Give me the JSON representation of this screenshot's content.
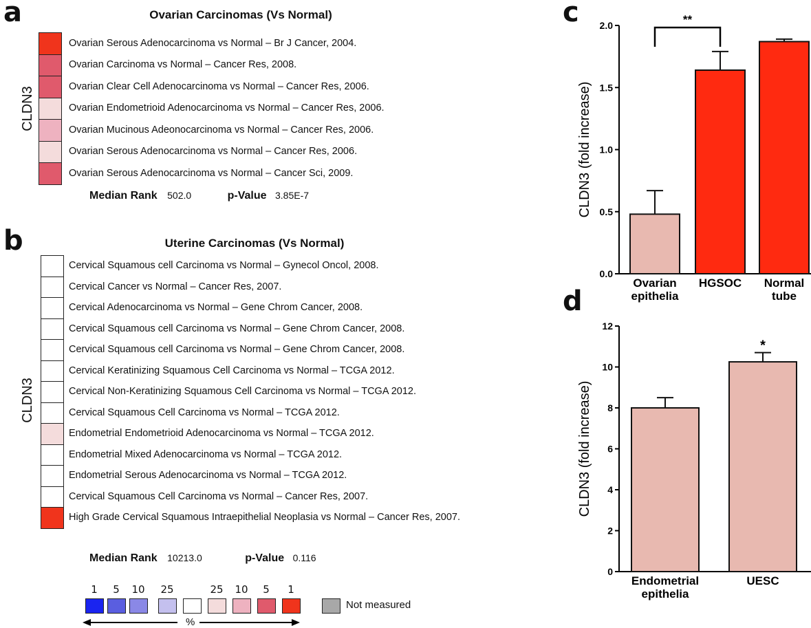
{
  "panels": {
    "a": {
      "letter": "a",
      "title": "Ovarian Carcinomas (Vs Normal)",
      "gene": "CLDN3",
      "rows": [
        {
          "label": "Ovarian Serous Adenocarcinoma vs Normal – Br J  Cancer, 2004.",
          "color": "#f0341c"
        },
        {
          "label": "Ovarian Carcinoma vs Normal – Cancer Res, 2008.",
          "color": "#e05a6c"
        },
        {
          "label": "Ovarian Clear Cell Adenocarcinoma vs Normal – Cancer Res, 2006.",
          "color": "#e05a6c"
        },
        {
          "label": "Ovarian Endometrioid Adenocarcinoma vs Normal – Cancer Res, 2006.",
          "color": "#f4dcdc"
        },
        {
          "label": "Ovarian Mucinous Adeonocarcinoma vs Normal – Cancer Res, 2006.",
          "color": "#eeb2c0"
        },
        {
          "label": "Ovarian Serous Adenocarcinoma vs Normal – Cancer Res, 2006.",
          "color": "#f4dcdc"
        },
        {
          "label": "Ovarian Serous Adenocarcinoma vs Normal – Cancer Sci, 2009.",
          "color": "#e05a6c"
        }
      ],
      "median_rank_label": "Median Rank",
      "median_rank": "502.0",
      "pvalue_label": "p-Value",
      "pvalue": "3.85E-7"
    },
    "b": {
      "letter": "b",
      "title": "Uterine Carcinomas (Vs Normal)",
      "gene": "CLDN3",
      "rows": [
        {
          "label": "Cervical Squamous cell Carcinoma vs Normal – Gynecol Oncol, 2008.",
          "color": "#ffffff"
        },
        {
          "label": "Cervical Cancer vs Normal – Cancer Res, 2007.",
          "color": "#ffffff"
        },
        {
          "label": "Cervical Adenocarcinoma vs Normal – Gene Chrom Cancer, 2008.",
          "color": "#ffffff"
        },
        {
          "label": "Cervical Squamous cell Carcinoma vs Normal – Gene Chrom Cancer, 2008.",
          "color": "#ffffff"
        },
        {
          "label": "Cervical Squamous cell Carcinoma vs Normal – Gene Chrom Cancer, 2008.",
          "color": "#ffffff"
        },
        {
          "label": "Cervical Keratinizing Squamous Cell Carcinoma vs Normal – TCGA 2012.",
          "color": "#ffffff"
        },
        {
          "label": "Cervical Non-Keratinizing Squamous Cell Carcinoma vs Normal – TCGA 2012.",
          "color": "#ffffff"
        },
        {
          "label": "Cervical Squamous Cell Carcinoma vs Normal – TCGA 2012.",
          "color": "#ffffff"
        },
        {
          "label": "Endometrial Endometrioid Adenocarcinoma vs Normal – TCGA 2012.",
          "color": "#f4dcdc"
        },
        {
          "label": "Endometrial Mixed Adenocarcinoma vs Normal – TCGA 2012.",
          "color": "#ffffff"
        },
        {
          "label": "Endometrial Serous Adenocarcinoma vs Normal – TCGA 2012.",
          "color": "#ffffff"
        },
        {
          "label": "Cervical Squamous Cell Carcinoma vs Normal – Cancer Res, 2007.",
          "color": "#ffffff"
        },
        {
          "label": "High Grade Cervical Squamous Intraepithelial Neoplasia vs Normal – Cancer Res, 2007.",
          "color": "#f0341c"
        }
      ],
      "median_rank_label": "Median Rank",
      "median_rank": "10213.0",
      "pvalue_label": "p-Value",
      "pvalue": "0.116"
    },
    "legend": {
      "numbers": [
        "1",
        "5",
        "10",
        "25",
        "25",
        "10",
        "5",
        "1"
      ],
      "colors": [
        "#1a24f0",
        "#5a5ee0",
        "#8a88e6",
        "#c4c0ee",
        "#ffffff",
        "#f4dcdc",
        "#eeb2c0",
        "#e05a6c",
        "#f0341c"
      ],
      "not_measured_label": "Not measured",
      "not_measured_color": "#a8a8a8",
      "percent_label": "%"
    },
    "c": {
      "letter": "c"
    },
    "d": {
      "letter": "d"
    }
  },
  "chart_data": [
    {
      "panel": "c",
      "type": "bar",
      "categories": [
        [
          "Ovarian",
          "epithelia"
        ],
        [
          "HGSOC"
        ],
        [
          "Normal",
          "tube"
        ]
      ],
      "values": [
        0.48,
        1.64,
        1.87
      ],
      "errors": [
        0.19,
        0.15,
        0.02
      ],
      "colors": [
        "#e8b9b0",
        "#ff2a10",
        "#ff2a10"
      ],
      "ylabel": "CLDN3 (fold increase)",
      "ylim": [
        0,
        2.0
      ],
      "yticks": [
        "0.0",
        "0.5",
        "1.0",
        "1.5",
        "2.0"
      ],
      "significance": {
        "between": [
          0,
          1
        ],
        "label": "**"
      }
    },
    {
      "panel": "d",
      "type": "bar",
      "categories": [
        [
          "Endometrial",
          "epithelia"
        ],
        [
          "UESC"
        ]
      ],
      "values": [
        8.0,
        10.25
      ],
      "errors": [
        0.5,
        0.45
      ],
      "colors": [
        "#e8b9b0",
        "#e8b9b0"
      ],
      "ylabel": "CLDN3 (fold increase)",
      "ylim": [
        0,
        12
      ],
      "yticks": [
        "0",
        "2",
        "4",
        "6",
        "8",
        "10",
        "12"
      ],
      "significance": {
        "above": 1,
        "label": "*"
      }
    }
  ]
}
